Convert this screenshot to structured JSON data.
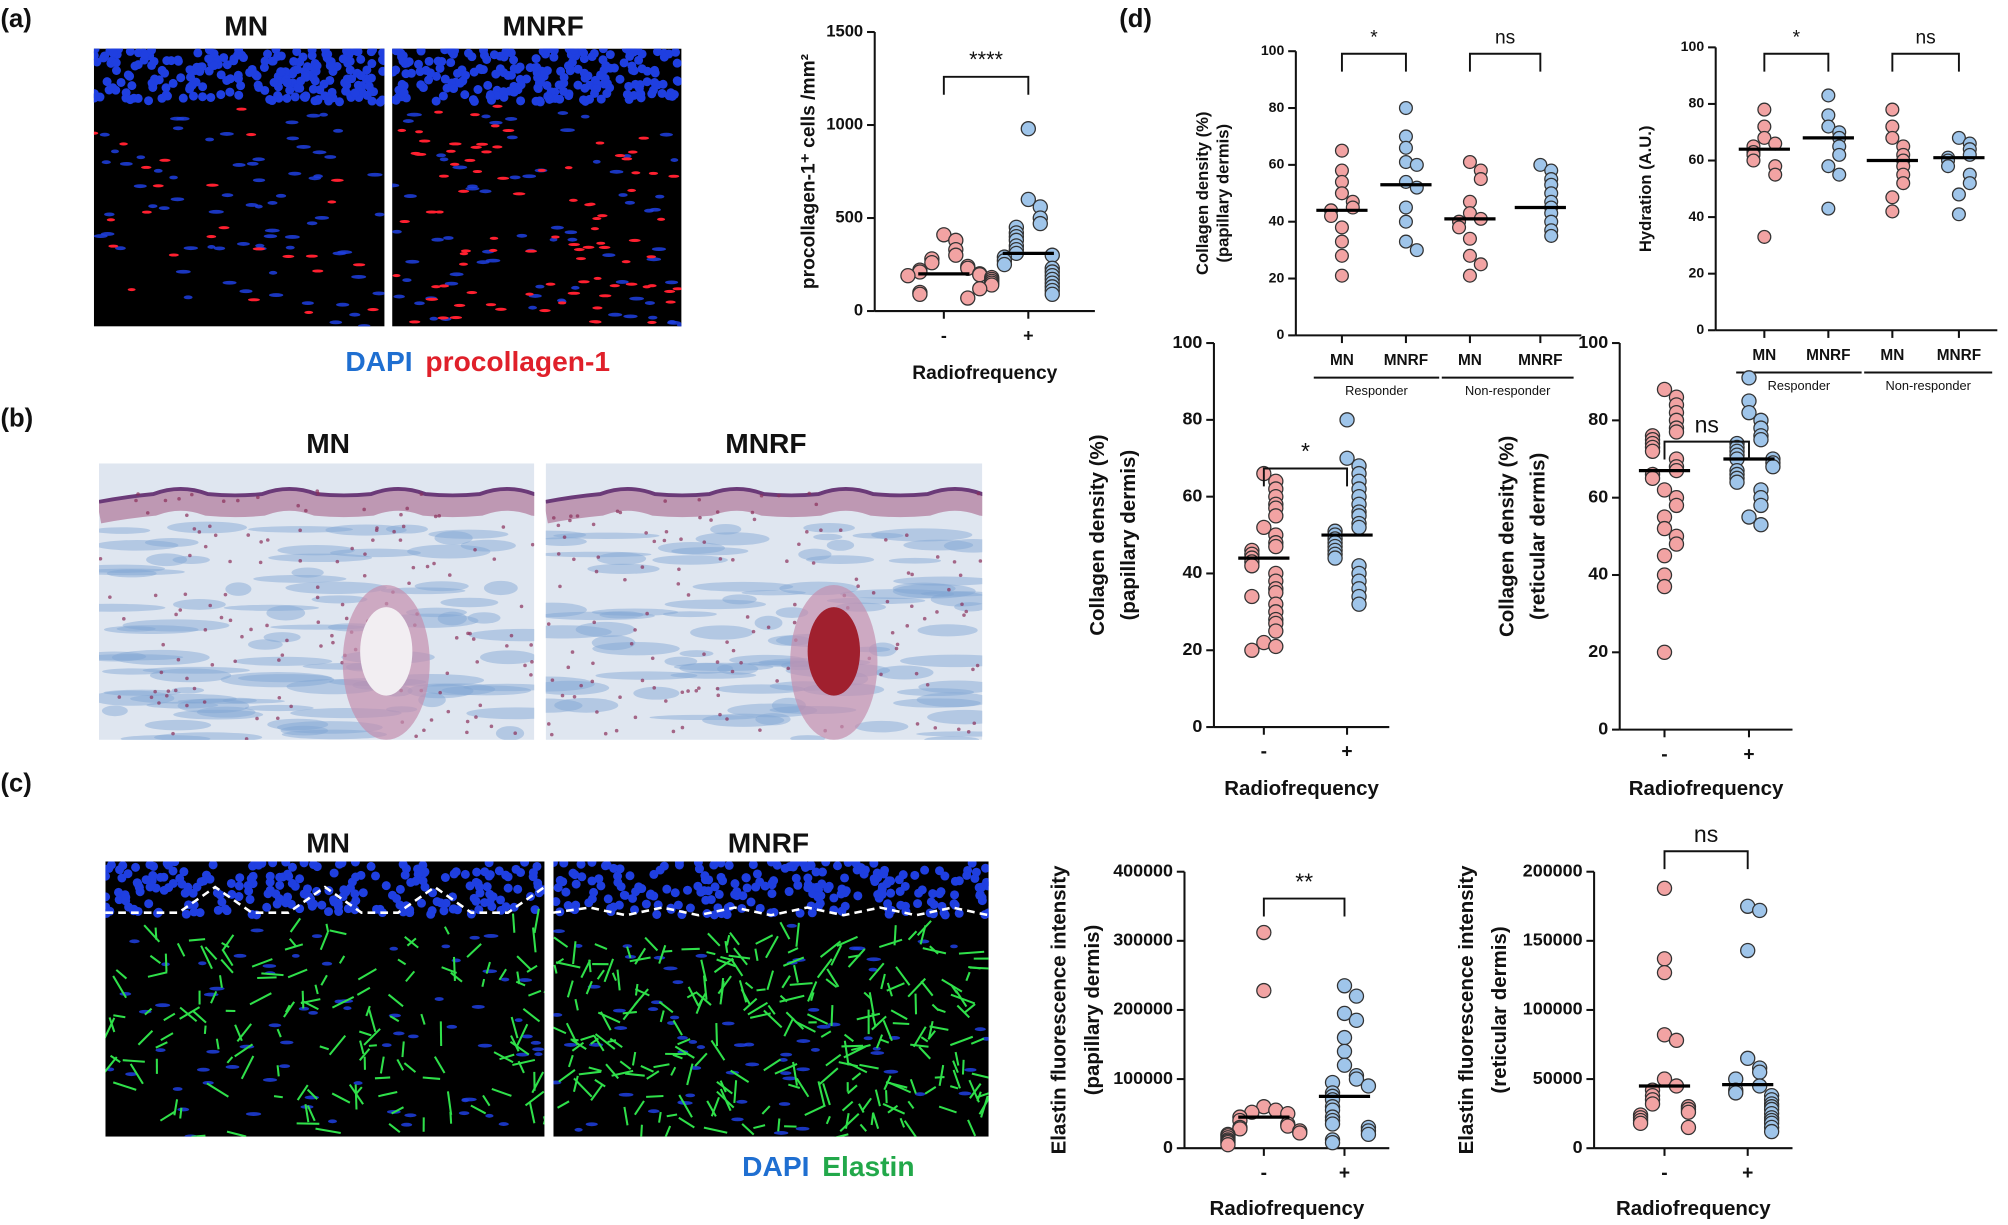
{
  "figure": {
    "panel_labels": [
      "(a)",
      "(b)",
      "(c)",
      "(d)"
    ],
    "a_titles": [
      "MN",
      "MNRF"
    ],
    "a_stain": [
      "DAPI",
      "procollagen-1"
    ],
    "b_titles": [
      "MN",
      "MNRF"
    ],
    "c_titles": [
      "MN",
      "MNRF"
    ],
    "c_stain": [
      "DAPI",
      "Elastin"
    ]
  },
  "chart_data": [
    {
      "type": "dot",
      "ylabel": [
        "procollagen-1⁺ cells /mm²"
      ],
      "xlabel": "Radiofrequency",
      "categories": [
        "-",
        "+"
      ],
      "colors": [
        "#f2a3a3",
        "#9fc5ea"
      ],
      "values": [
        [
          410,
          380,
          330,
          300,
          280,
          260,
          240,
          230,
          220,
          210,
          200,
          195,
          190,
          180,
          170,
          160,
          150,
          140,
          120,
          100,
          90,
          70
        ],
        [
          980,
          600,
          560,
          500,
          470,
          450,
          420,
          400,
          380,
          350,
          330,
          310,
          300,
          290,
          270,
          250,
          230,
          210,
          190,
          170,
          150,
          130,
          110,
          90
        ]
      ],
      "means": [
        200,
        310
      ],
      "comparisons": [
        "****"
      ],
      "ylim": [
        0,
        1500
      ],
      "yticks": [
        0,
        500,
        1000,
        1500
      ]
    },
    {
      "type": "dot",
      "ylabel": [
        "Collagen density (%)",
        "(papillary dermis)"
      ],
      "categories": [
        "MN",
        "MNRF",
        "MN",
        "MNRF"
      ],
      "groups": [
        "Responder",
        "Non-responder"
      ],
      "colors": [
        "#f2a3a3",
        "#9fc5ea",
        "#f2a3a3",
        "#9fc5ea"
      ],
      "values": [
        [
          65,
          58,
          54,
          50,
          47,
          45,
          44,
          42,
          38,
          33,
          28,
          21
        ],
        [
          80,
          70,
          66,
          61,
          60,
          54,
          52,
          45,
          40,
          33,
          30
        ],
        [
          61,
          58,
          55,
          47,
          43,
          41,
          40,
          38,
          34,
          28,
          25,
          21
        ],
        [
          60,
          58,
          55,
          53,
          50,
          47,
          45,
          43,
          40,
          37,
          35
        ]
      ],
      "means": [
        44,
        53,
        41,
        45
      ],
      "comparisons": [
        "*",
        "ns"
      ],
      "ylim": [
        0,
        100
      ],
      "yticks": [
        0,
        20,
        40,
        60,
        80,
        100
      ]
    },
    {
      "type": "dot",
      "ylabel": [
        "Hydration (A.U.)"
      ],
      "categories": [
        "MN",
        "MNRF",
        "MN",
        "MNRF"
      ],
      "groups": [
        "Responder",
        "Non-responder"
      ],
      "colors": [
        "#f2a3a3",
        "#9fc5ea",
        "#f2a3a3",
        "#9fc5ea"
      ],
      "values": [
        [
          78,
          72,
          68,
          66,
          65,
          63,
          62,
          60,
          58,
          55,
          33
        ],
        [
          83,
          76,
          72,
          70,
          68,
          65,
          62,
          58,
          55,
          43
        ],
        [
          78,
          72,
          68,
          65,
          62,
          60,
          58,
          55,
          52,
          47,
          42
        ],
        [
          68,
          66,
          64,
          62,
          61,
          60,
          58,
          55,
          52,
          48,
          41
        ]
      ],
      "means": [
        64,
        68,
        60,
        61
      ],
      "comparisons": [
        "*",
        "ns"
      ],
      "ylim": [
        0,
        100
      ],
      "yticks": [
        0,
        20,
        40,
        60,
        80,
        100
      ]
    },
    {
      "type": "dot",
      "ylabel": [
        "Collagen  density (%)",
        "(papillary dermis)"
      ],
      "xlabel": "Radiofrequency",
      "categories": [
        "-",
        "+"
      ],
      "colors": [
        "#f2a3a3",
        "#9fc5ea"
      ],
      "values": [
        [
          66,
          64,
          62,
          60,
          58,
          57,
          55,
          52,
          50,
          48,
          47,
          46,
          45,
          44,
          43,
          42,
          40,
          38,
          36,
          35,
          34,
          32,
          30,
          28,
          27,
          25,
          22,
          21,
          20
        ],
        [
          80,
          70,
          68,
          66,
          64,
          62,
          60,
          58,
          56,
          55,
          53,
          52,
          51,
          50,
          49,
          48,
          47,
          46,
          45,
          44,
          42,
          40,
          38,
          36,
          34,
          32
        ]
      ],
      "means": [
        44,
        50
      ],
      "comparisons": [
        "*"
      ],
      "ylim": [
        0,
        100
      ],
      "yticks": [
        0,
        20,
        40,
        60,
        80,
        100
      ]
    },
    {
      "type": "dot",
      "ylabel": [
        "Collagen  density (%)",
        "(reticular dermis)"
      ],
      "xlabel": "Radiofrequency",
      "categories": [
        "-",
        "+"
      ],
      "colors": [
        "#f2a3a3",
        "#9fc5ea"
      ],
      "values": [
        [
          88,
          86,
          84,
          82,
          80,
          78,
          77,
          76,
          75,
          74,
          73,
          72,
          70,
          68,
          67,
          66,
          65,
          62,
          60,
          58,
          55,
          52,
          50,
          48,
          45,
          40,
          37,
          20
        ],
        [
          91,
          85,
          82,
          80,
          78,
          76,
          75,
          74,
          73,
          72,
          71,
          70,
          70,
          69,
          68,
          67,
          66,
          65,
          64,
          62,
          60,
          58,
          55,
          53
        ]
      ],
      "means": [
        67,
        70
      ],
      "comparisons": [
        "ns"
      ],
      "ylim": [
        0,
        100
      ],
      "yticks": [
        0,
        20,
        40,
        60,
        80,
        100
      ]
    },
    {
      "type": "dot",
      "ylabel": [
        "Elastin fluorescence intensity",
        "(papillary dermis)"
      ],
      "xlabel": "Radiofrequency",
      "categories": [
        "-",
        "+"
      ],
      "colors": [
        "#f2a3a3",
        "#9fc5ea"
      ],
      "values": [
        [
          312000,
          228000,
          60000,
          55000,
          52000,
          50000,
          45000,
          40000,
          35000,
          32000,
          30000,
          28000,
          25000,
          22000,
          20000,
          18000,
          15000,
          12000,
          10000,
          8000,
          5000
        ],
        [
          235000,
          220000,
          195000,
          185000,
          160000,
          140000,
          120000,
          105000,
          100000,
          95000,
          90000,
          80000,
          75000,
          70000,
          60000,
          55000,
          45000,
          40000,
          35000,
          30000,
          25000,
          20000,
          12000,
          8000
        ]
      ],
      "means": [
        45000,
        75000
      ],
      "comparisons": [
        "**"
      ],
      "ylim": [
        0,
        400000
      ],
      "yticks": [
        0,
        100000,
        200000,
        300000,
        400000
      ]
    },
    {
      "type": "dot",
      "ylabel": [
        "Elastin fluorescence intensity",
        "(reticular dermis)"
      ],
      "xlabel": "Radiofrequency",
      "categories": [
        "-",
        "+"
      ],
      "colors": [
        "#f2a3a3",
        "#9fc5ea"
      ],
      "values": [
        [
          188000,
          137000,
          127000,
          82000,
          78000,
          50000,
          45000,
          42000,
          38000,
          35000,
          32000,
          30000,
          28000,
          26000,
          24000,
          22000,
          20000,
          18000,
          15000
        ],
        [
          175000,
          172000,
          143000,
          65000,
          58000,
          55000,
          50000,
          45000,
          42000,
          40000,
          38000,
          35000,
          32000,
          30000,
          28000,
          25000,
          22000,
          20000,
          18000,
          15000,
          12000
        ]
      ],
      "means": [
        45000,
        46000
      ],
      "comparisons": [
        "ns"
      ],
      "ylim": [
        0,
        200000
      ],
      "yticks": [
        0,
        50000,
        100000,
        150000,
        200000
      ]
    }
  ]
}
